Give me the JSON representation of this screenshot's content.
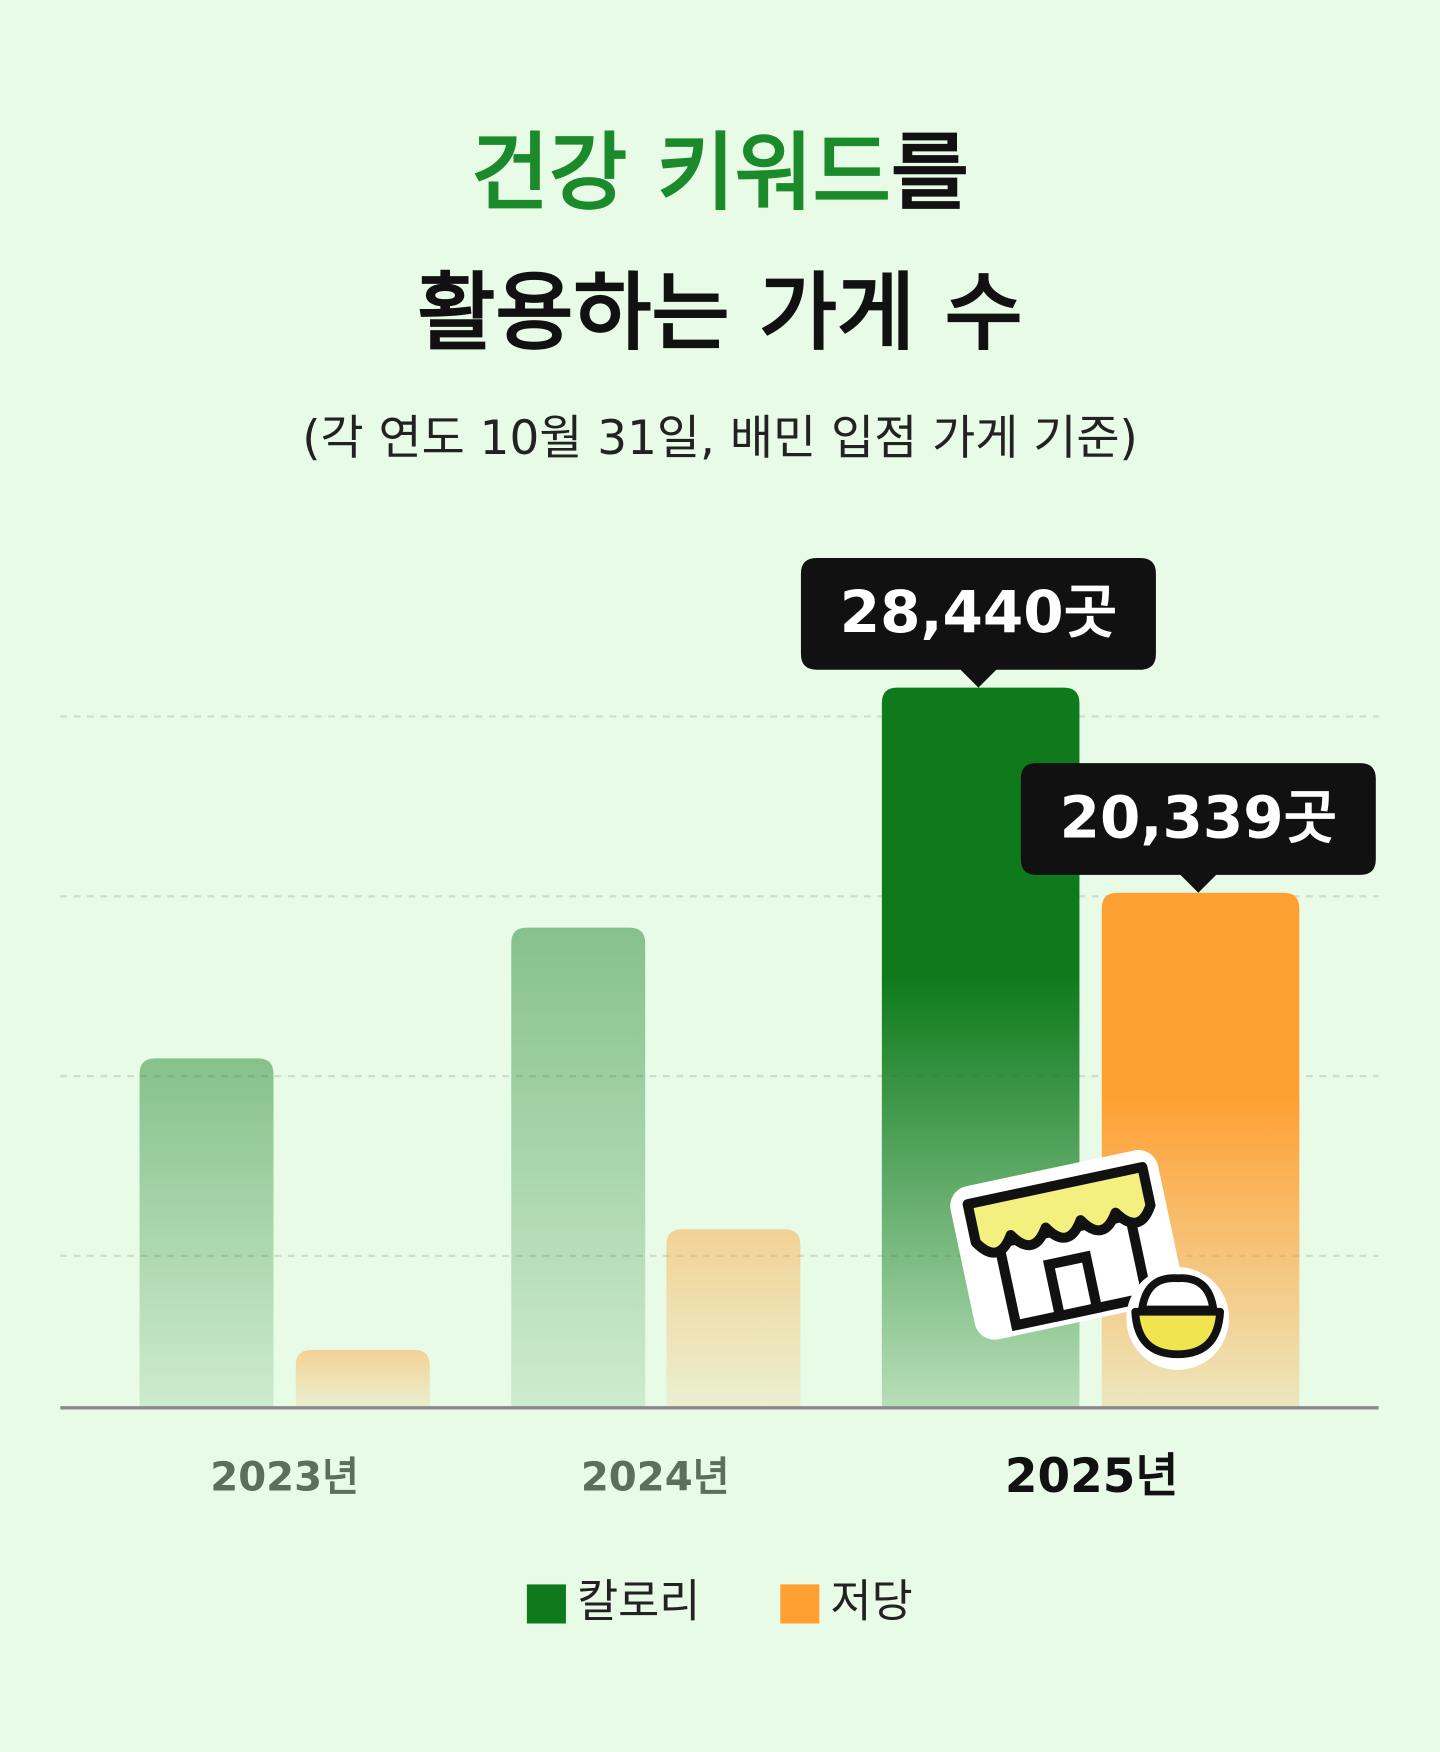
{
  "chart_data": {
    "type": "bar",
    "title": {
      "highlight": "건강 키워드",
      "line1_rest": "를",
      "line2": "활용하는 가게 수"
    },
    "subtitle": "(각 연도 10월 31일, 배민 입점 가게 기준)",
    "categories": [
      "2023년",
      "2024년",
      "2025년"
    ],
    "highlight": 2,
    "series": [
      {
        "name": "칼로리",
        "color": "#0e7a1c",
        "values": [
          13800,
          18960,
          28440
        ],
        "value_labels": [
          null,
          null,
          "28,440곳"
        ]
      },
      {
        "name": "저당",
        "color": "#ffa033",
        "values": [
          2290,
          7050,
          20339
        ],
        "value_labels": [
          null,
          null,
          "20,339곳"
        ]
      }
    ],
    "ylim": [
      0,
      30000
    ],
    "yticks": [
      6000,
      13100,
      20200,
      27300
    ],
    "grid": true
  }
}
